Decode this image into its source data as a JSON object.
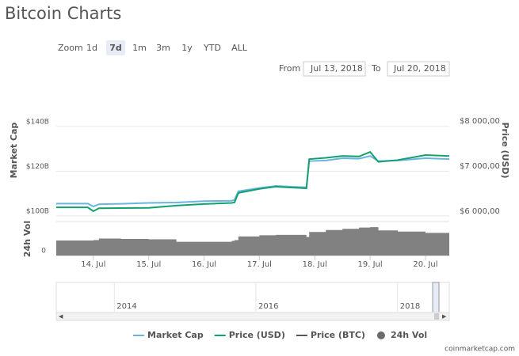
{
  "chart_data": {
    "type": "line",
    "title": "Bitcoin Charts",
    "zoom": {
      "label": "Zoom",
      "buttons": [
        "1d",
        "7d",
        "1m",
        "3m",
        "1y",
        "YTD",
        "ALL"
      ],
      "selected": "7d"
    },
    "range": {
      "from_label": "From",
      "from": "Jul 13, 2018",
      "to_label": "To",
      "to": "Jul 20, 2018"
    },
    "ylabel": "Market Cap",
    "y2label": "Price (USD)",
    "y3label": "24h Vol",
    "x": [
      13.33,
      13.9,
      14.0,
      14.1,
      14.5,
      15,
      15.5,
      16,
      16.5,
      16.55,
      16.62,
      17,
      17.3,
      17.6,
      17.85,
      17.9,
      18.2,
      18.5,
      18.8,
      19.0,
      19.15,
      19.5,
      20,
      20.43
    ],
    "xlim": [
      13.33,
      20.43
    ],
    "xticks": [
      {
        "value": 14,
        "label": "14. Jul"
      },
      {
        "value": 15,
        "label": "15. Jul"
      },
      {
        "value": 16,
        "label": "16. Jul"
      },
      {
        "value": 17,
        "label": "17. Jul"
      },
      {
        "value": 18,
        "label": "18. Jul"
      },
      {
        "value": 19,
        "label": "19. Jul"
      },
      {
        "value": 20,
        "label": "20. Jul"
      }
    ],
    "ylim": [
      98.2,
      143.5
    ],
    "yticks": [
      {
        "value": 100,
        "label": "$100B"
      },
      {
        "value": 120,
        "label": "$120B"
      },
      {
        "value": 140,
        "label": "$140B"
      }
    ],
    "y2lim": [
      5912,
      8158
    ],
    "y2ticks": [
      {
        "value": 6000,
        "label": "$6 000,00"
      },
      {
        "value": 7000,
        "label": "$7 000,00"
      },
      {
        "value": 8000,
        "label": "$8 000,00"
      }
    ],
    "y3lim": [
      0,
      8.2
    ],
    "y3ticks": [
      0
    ],
    "grid": true,
    "series": [
      {
        "name": "Market Cap",
        "color": "#6ab4e0",
        "axis": "y",
        "values": [
          105.5,
          105.5,
          104.2,
          105.2,
          105.4,
          105.8,
          106.0,
          106.6,
          106.8,
          107.2,
          111.0,
          112.5,
          113.4,
          113.0,
          112.8,
          124.5,
          124.8,
          125.8,
          125.6,
          126.8,
          124.5,
          124.8,
          125.8,
          125.4
        ]
      },
      {
        "name": "Price (USD)",
        "color": "#13a070",
        "axis": "y2",
        "values": [
          6190,
          6190,
          6105,
          6170,
          6175,
          6180,
          6230,
          6265,
          6290,
          6300,
          6510,
          6600,
          6650,
          6630,
          6614,
          7260,
          7290,
          7330,
          7320,
          7420,
          7200,
          7240,
          7350,
          7330
        ]
      },
      {
        "name": "Price (BTC)",
        "color": "#555555",
        "axis": "y2",
        "visible": false
      },
      {
        "name": "24h Vol",
        "color": "#6b6b6b",
        "axis": "y3",
        "values": [
          3.7,
          3.7,
          3.8,
          4.2,
          4.1,
          4.0,
          3.4,
          3.4,
          3.6,
          3.8,
          4.7,
          5.0,
          5.1,
          5.1,
          4.6,
          5.8,
          6.3,
          6.6,
          6.9,
          7.0,
          6.2,
          5.9,
          5.6,
          5.1
        ]
      }
    ],
    "navigator": {
      "xlim": [
        2013.18,
        2018.54
      ],
      "xticks": [
        2014,
        2016,
        2018
      ]
    },
    "credit": "coinmarketcap.com"
  }
}
